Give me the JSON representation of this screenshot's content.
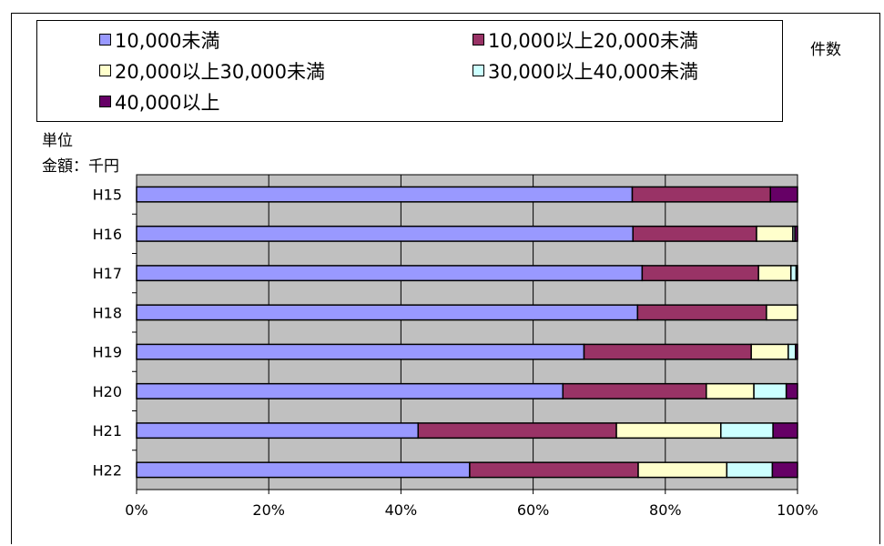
{
  "labels": {
    "count": "件数",
    "unit_line1": "単位",
    "unit_line2": "金額：千円"
  },
  "chart_data": {
    "type": "bar",
    "orientation": "horizontal",
    "stacked": "percent",
    "categories": [
      "H15",
      "H16",
      "H17",
      "H18",
      "H19",
      "H20",
      "H21",
      "H22"
    ],
    "xlim": [
      0,
      100
    ],
    "x_ticks": [
      "0%",
      "20%",
      "40%",
      "60%",
      "80%",
      "100%"
    ],
    "grid": true,
    "legend_position": "top",
    "series": [
      {
        "name": "10,000未満",
        "color": "#9999ff",
        "values": [
          75.0,
          75.1,
          76.5,
          75.8,
          67.7,
          64.5,
          42.6,
          50.4
        ]
      },
      {
        "name": "10,000以上20,000未満",
        "color": "#993366",
        "values": [
          20.9,
          18.7,
          17.6,
          19.5,
          25.3,
          21.7,
          30.0,
          25.5
        ]
      },
      {
        "name": "20,000以上30,000未満",
        "color": "#ffffcc",
        "values": [
          0,
          5.5,
          4.9,
          4.7,
          5.6,
          7.2,
          15.8,
          13.4
        ]
      },
      {
        "name": "30,000以上40,000未満",
        "color": "#ccffff",
        "values": [
          0,
          0.3,
          0.8,
          0,
          1.1,
          4.9,
          7.9,
          6.9
        ]
      },
      {
        "name": "40,000以上",
        "color": "#660066",
        "values": [
          4.1,
          0.4,
          0.2,
          0,
          0.3,
          1.7,
          3.7,
          3.8
        ]
      }
    ]
  }
}
